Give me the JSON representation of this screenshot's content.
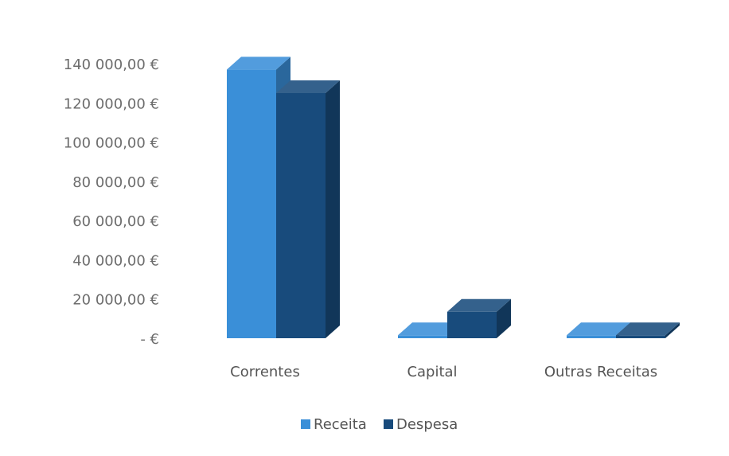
{
  "chart_data": {
    "type": "bar",
    "title": "",
    "xlabel": "",
    "ylabel": "",
    "categories": [
      "Correntes",
      "Capital",
      "Outras Receitas"
    ],
    "series": [
      {
        "name": "Receita",
        "values": [
          137000,
          1500,
          1500
        ],
        "color": "#3a8fd8"
      },
      {
        "name": "Despesa",
        "values": [
          125000,
          13500,
          1500
        ],
        "color": "#184b7c"
      }
    ],
    "ylim": [
      0,
      140000
    ],
    "yticks": [
      0,
      20000,
      40000,
      60000,
      80000,
      100000,
      120000,
      140000
    ],
    "ytick_labels": [
      "-  €",
      "20 000,00 €",
      "40 000,00 €",
      "60 000,00 €",
      "80 000,00 €",
      "100 000,00 €",
      "120 000,00 €",
      "140 000,00 €"
    ],
    "grid": false,
    "legend_position": "bottom",
    "style": "3d-column"
  }
}
